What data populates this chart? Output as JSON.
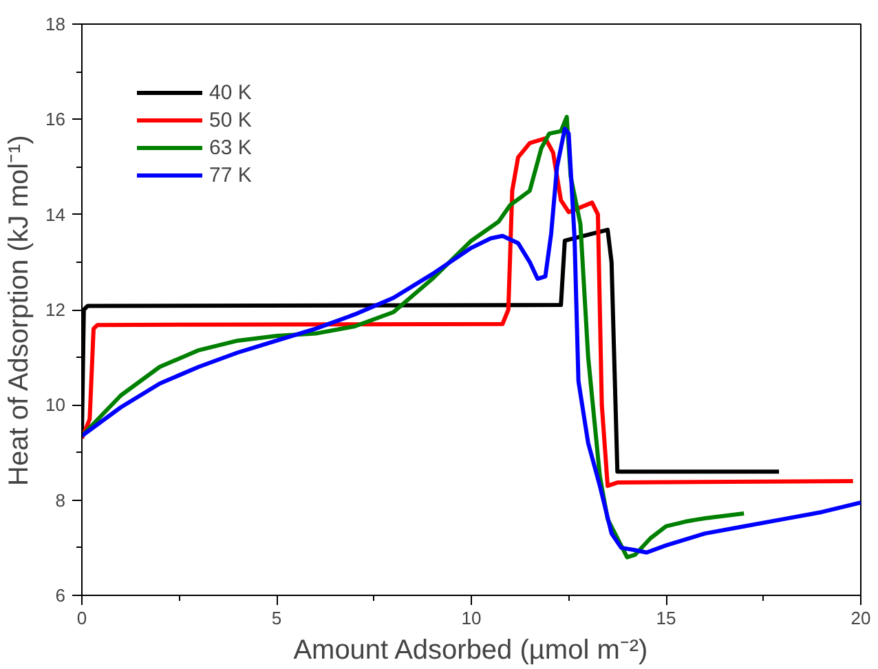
{
  "chart_data": {
    "type": "line",
    "xlabel": "Amount Adsorbed (µmol m⁻²)",
    "ylabel": "Heat of Adsorption (kJ mol⁻¹)",
    "xlim": [
      0,
      20
    ],
    "ylim": [
      6,
      18
    ],
    "xticks": [
      0,
      {
        "value": 2.5,
        "label": null
      },
      5,
      {
        "value": 7.5,
        "label": null
      },
      10,
      {
        "value": 12.5,
        "label": null
      },
      15,
      {
        "value": 17.5,
        "label": null
      },
      20
    ],
    "yticks": [
      6,
      {
        "value": 7,
        "label": null
      },
      8,
      {
        "value": 9,
        "label": null
      },
      10,
      {
        "value": 11,
        "label": null
      },
      12,
      {
        "value": 13,
        "label": null
      },
      14,
      {
        "value": 15,
        "label": null
      },
      16,
      {
        "value": 17,
        "label": null
      },
      18
    ],
    "grid": false,
    "legend": "top left",
    "marker": "none",
    "line_style": "solid",
    "series": [
      {
        "name": "40 K",
        "color": "#000000",
        "x": [
          0,
          0.05,
          0.15,
          12.3,
          12.4,
          13.5,
          13.6,
          13.75,
          17.9
        ],
        "values": [
          9.35,
          12.0,
          12.08,
          12.1,
          13.45,
          13.68,
          13.0,
          8.6,
          8.6
        ]
      },
      {
        "name": "50 K",
        "color": "#ff0000",
        "x": [
          0,
          0.2,
          0.3,
          0.4,
          10.8,
          10.95,
          11.05,
          11.2,
          11.5,
          11.9,
          12.1,
          12.3,
          12.5,
          13.1,
          13.25,
          13.35,
          13.5,
          13.75,
          19.8
        ],
        "values": [
          9.3,
          9.7,
          11.6,
          11.68,
          11.7,
          12.0,
          14.5,
          15.2,
          15.5,
          15.6,
          15.3,
          14.3,
          14.05,
          14.25,
          14.0,
          10.0,
          8.3,
          8.37,
          8.4
        ]
      },
      {
        "name": "63 K",
        "color": "#008000",
        "x": [
          0,
          1,
          2,
          3,
          4,
          5,
          6,
          7,
          8,
          9,
          10,
          10.7,
          11,
          11.5,
          11.8,
          12.0,
          12.3,
          12.45,
          12.55,
          12.8,
          13.0,
          13.3,
          13.5,
          14.0,
          14.2,
          14.6,
          15.0,
          15.5,
          16,
          17
        ],
        "values": [
          9.35,
          10.2,
          10.8,
          11.15,
          11.35,
          11.45,
          11.5,
          11.65,
          11.95,
          12.65,
          13.45,
          13.85,
          14.2,
          14.5,
          15.4,
          15.7,
          15.75,
          16.05,
          14.8,
          13.8,
          11.0,
          8.5,
          7.6,
          6.8,
          6.85,
          7.2,
          7.45,
          7.55,
          7.62,
          7.72
        ]
      },
      {
        "name": "77 K",
        "color": "#0000ff",
        "x": [
          0,
          1,
          2,
          3,
          4,
          5,
          6,
          7,
          8,
          9,
          10,
          10.5,
          10.8,
          11.2,
          11.5,
          11.7,
          11.9,
          12.05,
          12.2,
          12.4,
          12.5,
          12.65,
          12.75,
          13.0,
          13.3,
          13.6,
          13.85,
          14.2,
          14.5,
          15,
          16,
          17,
          18,
          19,
          20
        ],
        "values": [
          9.35,
          9.95,
          10.45,
          10.8,
          11.1,
          11.35,
          11.6,
          11.9,
          12.25,
          12.75,
          13.3,
          13.5,
          13.55,
          13.4,
          13.0,
          12.65,
          12.7,
          13.6,
          15.0,
          15.8,
          15.7,
          13.5,
          10.5,
          9.2,
          8.3,
          7.3,
          7.0,
          6.95,
          6.9,
          7.05,
          7.3,
          7.45,
          7.6,
          7.75,
          7.95
        ]
      }
    ]
  }
}
